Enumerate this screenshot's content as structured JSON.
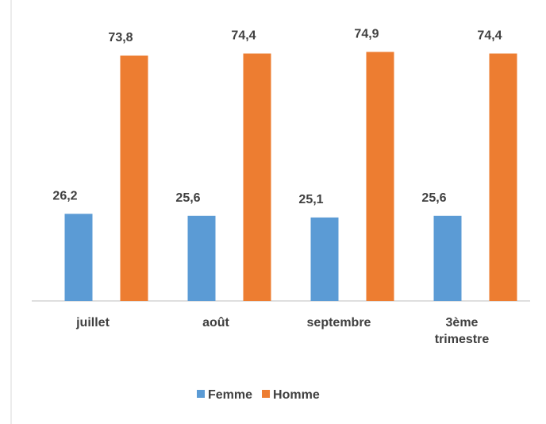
{
  "chart_data": {
    "type": "bar",
    "categories": [
      "juillet",
      "août",
      "septembre",
      "3ème trimestre"
    ],
    "series": [
      {
        "name": "Femme",
        "color": "#5b9bd5",
        "values": [
          26.2,
          25.6,
          25.1,
          25.6
        ],
        "value_labels": [
          "26,2",
          "25,6",
          "25,1",
          "25,6"
        ]
      },
      {
        "name": "Homme",
        "color": "#ed7d31",
        "values": [
          73.8,
          74.4,
          74.9,
          74.4
        ],
        "value_labels": [
          "73,8",
          "74,4",
          "74,9",
          "74,4"
        ]
      }
    ],
    "ylim": [
      0,
      80
    ],
    "legend": "bottom"
  }
}
